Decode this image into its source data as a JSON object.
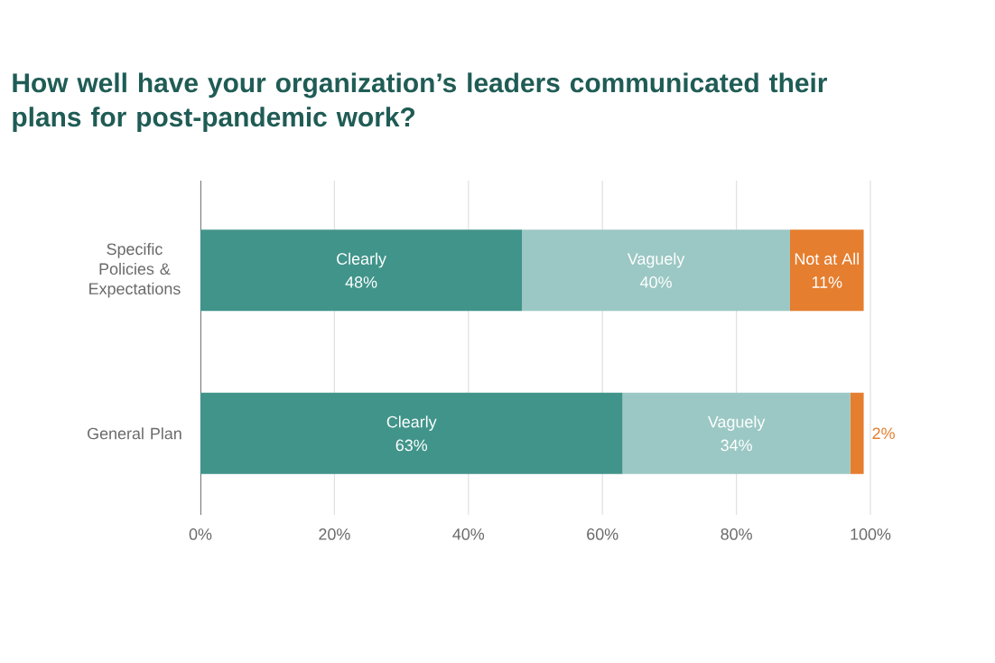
{
  "chart_data": {
    "type": "bar",
    "orientation": "horizontal",
    "stacked": true,
    "title": "How well have your organization’s leaders communicated their plans for post-pandemic work?",
    "categories": [
      "Specific Policies & Expectations",
      "General Plan"
    ],
    "series": [
      {
        "name": "Clearly",
        "color": "#41948a",
        "values": [
          48,
          63
        ],
        "value_labels": [
          "48%",
          "63%"
        ]
      },
      {
        "name": "Vaguely",
        "color": "#9bc8c4",
        "values": [
          40,
          34
        ],
        "value_labels": [
          "40%",
          "34%"
        ]
      },
      {
        "name": "Not at All",
        "color": "#e57e2f",
        "values": [
          11,
          2
        ],
        "value_labels": [
          "11%",
          "2%"
        ]
      }
    ],
    "xlim": [
      0,
      100
    ],
    "xticks": [
      {
        "value": 0,
        "label": "0%"
      },
      {
        "value": 20,
        "label": "20%"
      },
      {
        "value": 40,
        "label": "40%"
      },
      {
        "value": 60,
        "label": "60%"
      },
      {
        "value": 80,
        "label": "80%"
      },
      {
        "value": 100,
        "label": "100%"
      }
    ],
    "grid": "x"
  }
}
